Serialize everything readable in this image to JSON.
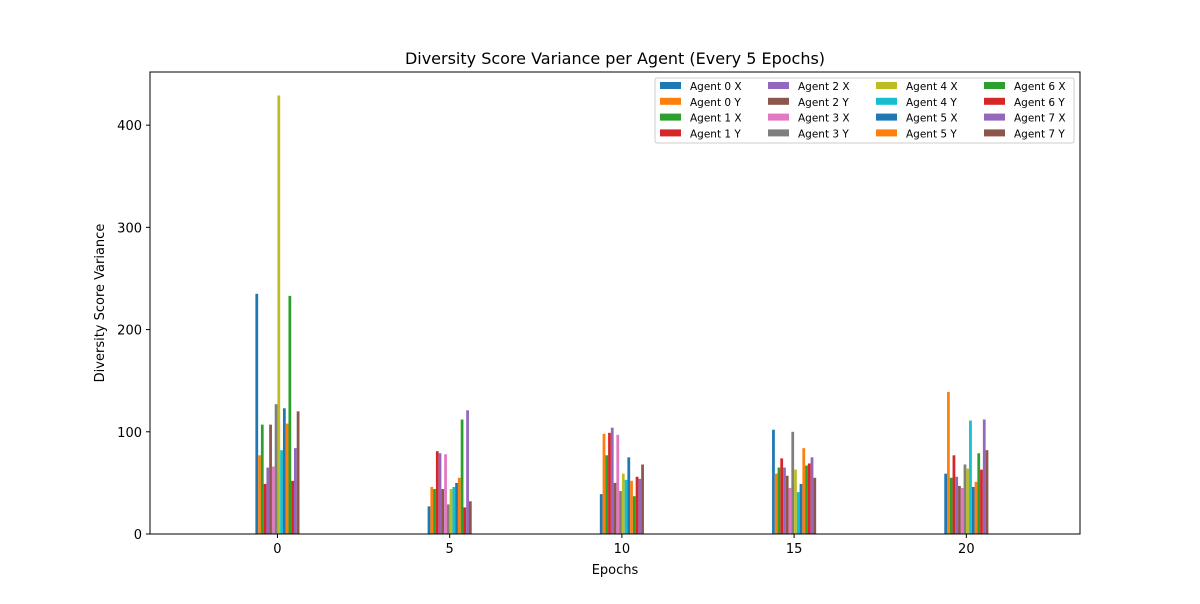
{
  "chart_data": {
    "type": "bar",
    "title": "Diversity Score Variance per Agent (Every 5 Epochs)",
    "xlabel": "Epochs",
    "ylabel": "Diversity Score Variance",
    "categories": [
      0,
      5,
      10,
      15,
      20
    ],
    "x_ticks": [
      "0",
      "5",
      "10",
      "15",
      "20"
    ],
    "y_ticks": [
      0,
      100,
      200,
      300,
      400
    ],
    "ylim": [
      0,
      452
    ],
    "xlim": [
      -3.7,
      23.3
    ],
    "grid": false,
    "legend": {
      "placement": "top-right",
      "columns": 4
    },
    "series": [
      {
        "name": "Agent 0 X",
        "color": "#1f77b4",
        "values": [
          235,
          27,
          39,
          102,
          59
        ]
      },
      {
        "name": "Agent 0 Y",
        "color": "#ff7f0e",
        "values": [
          77,
          46,
          98,
          59,
          139
        ]
      },
      {
        "name": "Agent 1 X",
        "color": "#2ca02c",
        "values": [
          107,
          44,
          77,
          65,
          55
        ]
      },
      {
        "name": "Agent 1 Y",
        "color": "#d62728",
        "values": [
          49,
          81,
          99,
          74,
          77
        ]
      },
      {
        "name": "Agent 2 X",
        "color": "#9467bd",
        "values": [
          65,
          79,
          104,
          65,
          56
        ]
      },
      {
        "name": "Agent 2 Y",
        "color": "#8c564b",
        "values": [
          107,
          44,
          50,
          57,
          47
        ]
      },
      {
        "name": "Agent 3 X",
        "color": "#e377c2",
        "values": [
          66,
          78,
          97,
          45,
          45
        ]
      },
      {
        "name": "Agent 3 Y",
        "color": "#7f7f7f",
        "values": [
          127,
          29,
          42,
          100,
          68
        ]
      },
      {
        "name": "Agent 4 X",
        "color": "#bcbd22",
        "values": [
          429,
          44,
          59,
          63,
          64
        ]
      },
      {
        "name": "Agent 4 Y",
        "color": "#17becf",
        "values": [
          82,
          46,
          53,
          41,
          111
        ]
      },
      {
        "name": "Agent 5 X",
        "color": "#1f77b4",
        "values": [
          123,
          50,
          75,
          49,
          46
        ]
      },
      {
        "name": "Agent 5 Y",
        "color": "#ff7f0e",
        "values": [
          108,
          55,
          52,
          84,
          51
        ]
      },
      {
        "name": "Agent 6 X",
        "color": "#2ca02c",
        "values": [
          233,
          112,
          37,
          67,
          79
        ]
      },
      {
        "name": "Agent 6 Y",
        "color": "#d62728",
        "values": [
          52,
          26,
          56,
          69,
          63
        ]
      },
      {
        "name": "Agent 7 X",
        "color": "#9467bd",
        "values": [
          84,
          121,
          54,
          75,
          112
        ]
      },
      {
        "name": "Agent 7 Y",
        "color": "#8c564b",
        "values": [
          120,
          32,
          68,
          55,
          82
        ]
      }
    ]
  }
}
